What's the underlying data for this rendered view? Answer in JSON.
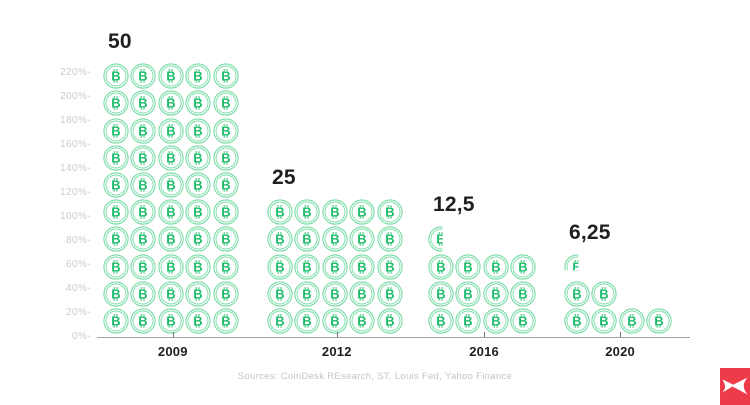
{
  "chart_data": {
    "type": "pictogram",
    "title": "",
    "description": "Bitcoin block reward halving shown as stacks of bitcoin coin icons per halving year",
    "unit_icon": "bitcoin-coin-icon",
    "categories": [
      "2009",
      "2012",
      "2016",
      "2020"
    ],
    "values": [
      50,
      25,
      12.5,
      6.25
    ],
    "value_labels": [
      "50",
      "25",
      "12,5",
      "6,25"
    ],
    "ylabel": "",
    "xlabel": "",
    "y_ticks": [
      "220%-",
      "200%-",
      "180%-",
      "160%-",
      "140%-",
      "120%-",
      "100%-",
      "80%-",
      "60%-",
      "40%-",
      "20%-",
      "0%-"
    ],
    "y_axis_range": [
      "0%",
      "220%"
    ],
    "grid": false,
    "legend": false,
    "source": "Sources: CoinDesk REsearch, ST. Louis Fed, Yahoo Finance",
    "colors": {
      "coin_ring": "#79dca6",
      "coin_symbol": "#1fbd6c",
      "axis_label": "#c9cdca",
      "text_dark": "#1f1f1f",
      "baseline": "#a2a2a2",
      "source_text": "#c4c4c4",
      "logo_red": "#ee3b4a",
      "background": "#ffffff"
    },
    "columns": [
      {
        "year": "2009",
        "reward": "50",
        "x": 103,
        "rows_bottom_to_top": [
          {
            "count": 5
          },
          {
            "count": 5
          },
          {
            "count": 5
          },
          {
            "count": 5
          },
          {
            "count": 5
          },
          {
            "count": 5
          },
          {
            "count": 5
          },
          {
            "count": 5
          },
          {
            "count": 5
          },
          {
            "count": 5
          }
        ]
      },
      {
        "year": "2012",
        "reward": "25",
        "x": 267,
        "rows_bottom_to_top": [
          {
            "count": 5
          },
          {
            "count": 5
          },
          {
            "count": 5
          },
          {
            "count": 5
          },
          {
            "count": 5
          }
        ]
      },
      {
        "year": "2016",
        "reward": "12,5",
        "x": 428,
        "rows_bottom_to_top": [
          {
            "count": 4
          },
          {
            "count": 4
          },
          {
            "count": 4
          },
          {
            "count": 0,
            "partial": "half"
          }
        ]
      },
      {
        "year": "2020",
        "reward": "6,25",
        "x": 564,
        "rows_bottom_to_top": [
          {
            "count": 4
          },
          {
            "count": 2
          },
          {
            "count": 0,
            "partial": "quarter"
          }
        ]
      }
    ]
  },
  "logo": {
    "name": "XTB"
  }
}
